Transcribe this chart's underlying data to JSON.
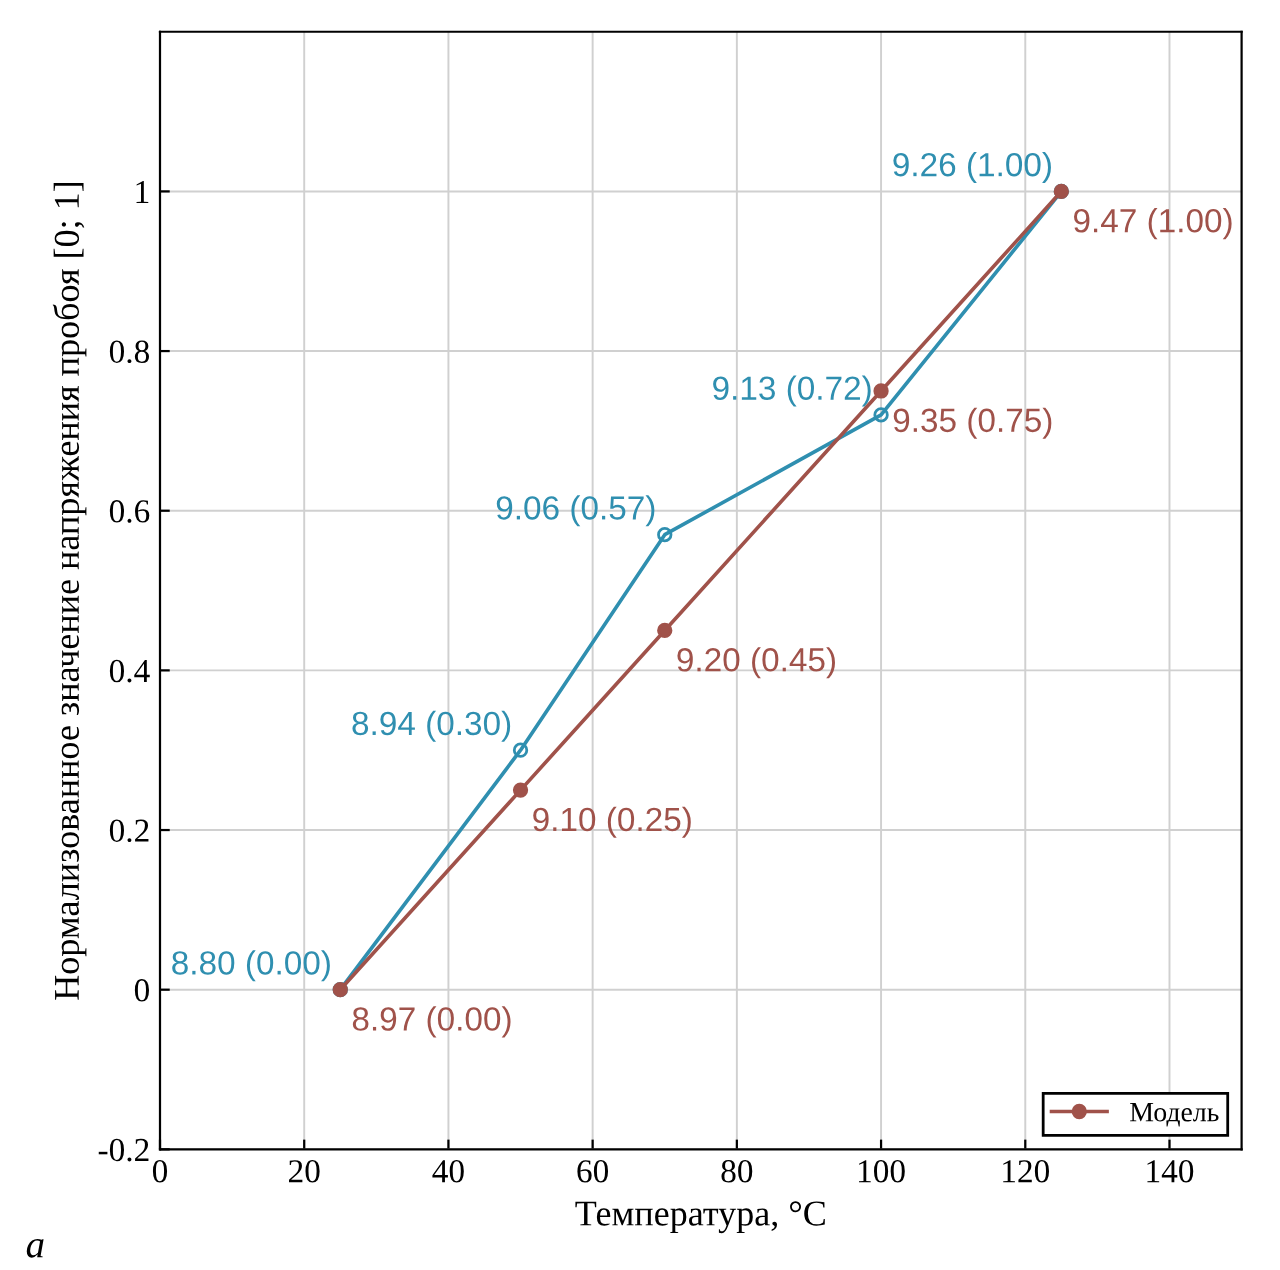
{
  "chart_data": {
    "type": "line",
    "xlabel": "Температура, °C",
    "ylabel": "Нормализованное значение напряжения пробоя [0; 1]",
    "xlim": [
      0,
      150
    ],
    "xticks": [
      0,
      20,
      40,
      60,
      80,
      100,
      120,
      140
    ],
    "ylim": [
      -0.2,
      1.2
    ],
    "yticks": [
      -0.2,
      0,
      0.2,
      0.4,
      0.6,
      0.8,
      1
    ],
    "grid": true,
    "legend": "bottom right",
    "line_style": "solid",
    "series": [
      {
        "color": "#2f8fb0",
        "marker": "circle",
        "x": [
          25,
          50,
          70,
          100,
          125
        ],
        "values": [
          0,
          0.3,
          0.57,
          0.72,
          1.0
        ],
        "value_labels": [
          "8.80 (0.00)",
          "8.94 (0.30)",
          "9.06 (0.57)",
          "9.13 (0.72)",
          "9.26 (1.00)"
        ]
      },
      {
        "name": "Модель",
        "color": "#a0524a",
        "marker": "circle",
        "x": [
          25,
          50,
          70,
          100,
          125
        ],
        "values": [
          0,
          0.25,
          0.45,
          0.75,
          1.0
        ],
        "value_labels": [
          "8.97 (0.00)",
          "9.10 (0.25)",
          "9.20 (0.45)",
          "9.35 (0.75)",
          "9.47 (1.00)"
        ]
      }
    ],
    "annotations": [
      "а"
    ]
  }
}
